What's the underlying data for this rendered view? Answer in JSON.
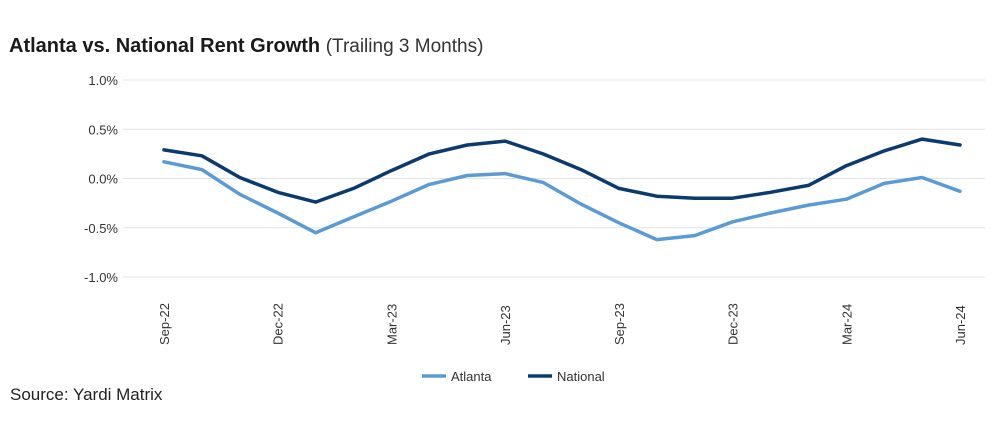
{
  "chart_data": {
    "type": "line",
    "title": "Atlanta vs. National Rent Growth",
    "subtitle": "(Trailing 3 Months)",
    "x": [
      "Sep-22",
      "Oct-22",
      "Nov-22",
      "Dec-22",
      "Jan-23",
      "Feb-23",
      "Mar-23",
      "Apr-23",
      "May-23",
      "Jun-23",
      "Jul-23",
      "Aug-23",
      "Sep-23",
      "Oct-23",
      "Nov-23",
      "Dec-23",
      "Jan-24",
      "Feb-24",
      "Mar-24",
      "Apr-24",
      "May-24",
      "Jun-24"
    ],
    "tick_labels": [
      "Sep-22",
      "Dec-22",
      "Mar-23",
      "Jun-23",
      "Sep-23",
      "Dec-23",
      "Mar-24",
      "Jun-24"
    ],
    "y_ticks": [
      "1.0%",
      "0.5%",
      "0.0%",
      "-0.5%",
      "-1.0%"
    ],
    "ylim": [
      -1.0,
      1.0
    ],
    "y_unit": "%",
    "grid": true,
    "legend_position": "bottom-center",
    "series": [
      {
        "name": "Atlanta",
        "color": "#5b9bd5",
        "values": [
          0.17,
          0.09,
          -0.16,
          -0.35,
          -0.55,
          -0.39,
          -0.23,
          -0.06,
          0.03,
          0.05,
          -0.04,
          -0.26,
          -0.45,
          -0.62,
          -0.58,
          -0.44,
          -0.35,
          -0.27,
          -0.21,
          -0.05,
          0.01,
          -0.13
        ]
      },
      {
        "name": "National",
        "color": "#0b3a6e",
        "values": [
          0.29,
          0.23,
          0.01,
          -0.14,
          -0.24,
          -0.1,
          0.08,
          0.25,
          0.34,
          0.38,
          0.25,
          0.09,
          -0.1,
          -0.18,
          -0.2,
          -0.2,
          -0.14,
          -0.07,
          0.13,
          0.28,
          0.4,
          0.34
        ]
      }
    ],
    "source": "Source: Yardi Matrix"
  }
}
